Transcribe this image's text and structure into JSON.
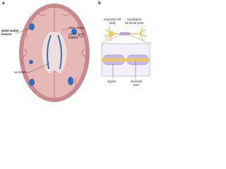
{
  "panel_a": {
    "label": "a",
    "labels": {
      "lesions": "white matter lesions",
      "white_matter": "white matter",
      "cortex": "cortex (grey matter)",
      "ventricles": "ventricles"
    }
  },
  "panel_b": {
    "label": "b",
    "labels": {
      "cell_body": "neuronal cell body",
      "myelinated_axon": "myelinated neuronal axon",
      "myelin": "myelin",
      "axon": "neuronal axon"
    }
  }
}
